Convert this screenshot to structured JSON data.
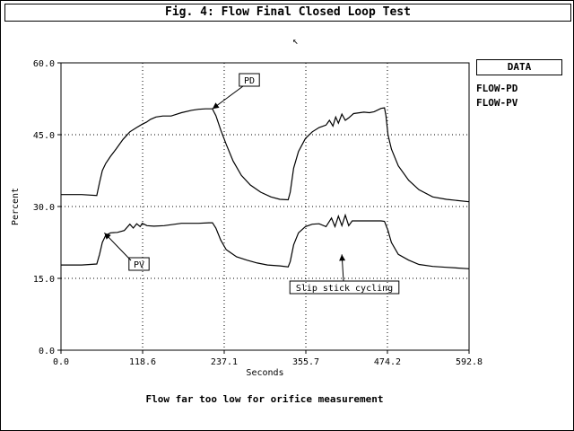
{
  "window": {
    "title": "Fig. 4: Flow Final Closed Loop Test"
  },
  "legend": {
    "title": "DATA",
    "items": [
      "FLOW-PD",
      "FLOW-PV"
    ]
  },
  "footnote": "Flow far too low for orifice measurement",
  "cursor": {
    "icon": "pointer-cursor-icon"
  },
  "chart_data": {
    "type": "line",
    "title": "Fig. 4: Flow Final Closed Loop Test",
    "xlabel": "Seconds",
    "ylabel": "Percent",
    "xlim": [
      0,
      592.8
    ],
    "ylim": [
      0,
      60
    ],
    "xticks": [
      0,
      118.6,
      237.1,
      355.7,
      474.2,
      592.8
    ],
    "xtick_labels": [
      "0.0",
      "118.6",
      "237.1",
      "355.7",
      "474.2",
      "592.8"
    ],
    "yticks": [
      0,
      15,
      30,
      45,
      60
    ],
    "ytick_labels": [
      "0.0",
      "15.0",
      "30.0",
      "45.0",
      "60.0"
    ],
    "grid": true,
    "legend_position": "right",
    "series": [
      {
        "name": "FLOW-PD",
        "x": [
          0,
          30,
          52,
          53,
          56,
          60,
          65,
          72,
          80,
          90,
          100,
          110,
          118,
          124,
          130,
          138,
          148,
          160,
          175,
          190,
          200,
          210,
          220,
          222,
          225,
          232,
          240,
          250,
          262,
          275,
          290,
          305,
          318,
          330,
          333,
          338,
          345,
          355,
          365,
          375,
          385,
          390,
          395,
          399,
          403,
          408,
          413,
          418,
          425,
          440,
          448,
          455,
          465,
          470,
          472,
          475,
          480,
          490,
          505,
          520,
          540,
          560,
          592.8
        ],
        "y": [
          32.5,
          32.5,
          32.3,
          33,
          35,
          37.5,
          39,
          40.5,
          42,
          44,
          45.6,
          46.5,
          47.2,
          47.6,
          48.2,
          48.7,
          48.9,
          48.9,
          49.6,
          50.1,
          50.3,
          50.4,
          50.4,
          49.8,
          49,
          46,
          43,
          39.5,
          36.5,
          34.5,
          33,
          32,
          31.5,
          31.4,
          33,
          38,
          41.5,
          44.2,
          45.6,
          46.5,
          47,
          48,
          46.8,
          48.7,
          47.4,
          49.3,
          48,
          48.5,
          49.4,
          49.7,
          49.6,
          49.8,
          50.5,
          50.6,
          49,
          45,
          42,
          38.5,
          35.5,
          33.5,
          32,
          31.5,
          31
        ]
      },
      {
        "name": "FLOW-PV",
        "x": [
          0,
          30,
          52,
          53,
          56,
          60,
          65,
          72,
          82,
          92,
          100,
          105,
          110,
          115,
          118,
          125,
          135,
          150,
          175,
          200,
          215,
          220,
          225,
          232,
          240,
          255,
          270,
          285,
          300,
          318,
          330,
          333,
          338,
          345,
          355,
          365,
          375,
          385,
          393,
          398,
          403,
          408,
          413,
          418,
          423,
          440,
          455,
          465,
          470,
          475,
          480,
          490,
          505,
          520,
          540,
          560,
          592.8
        ],
        "y": [
          17.8,
          17.8,
          18,
          18.5,
          20,
          22.5,
          24,
          24.5,
          24.6,
          25,
          26.3,
          25.5,
          26.4,
          25.8,
          26.5,
          26,
          25.9,
          26,
          26.5,
          26.5,
          26.6,
          26.6,
          25.5,
          23,
          21,
          19.5,
          18.8,
          18.2,
          17.8,
          17.6,
          17.4,
          18.5,
          22,
          24.5,
          25.8,
          26.3,
          26.4,
          25.8,
          27.6,
          25.8,
          28,
          26,
          28.2,
          26,
          27,
          27,
          27,
          27,
          26.9,
          25,
          22.5,
          20,
          18.8,
          17.9,
          17.5,
          17.3,
          17
        ]
      }
    ],
    "annotations": [
      {
        "text": "PD",
        "x": 220,
        "y": 50.4
      },
      {
        "text": "PV",
        "x": 63,
        "y": 24.5
      },
      {
        "text": "Slip stick cycling",
        "x": 408,
        "y": 20
      }
    ]
  }
}
